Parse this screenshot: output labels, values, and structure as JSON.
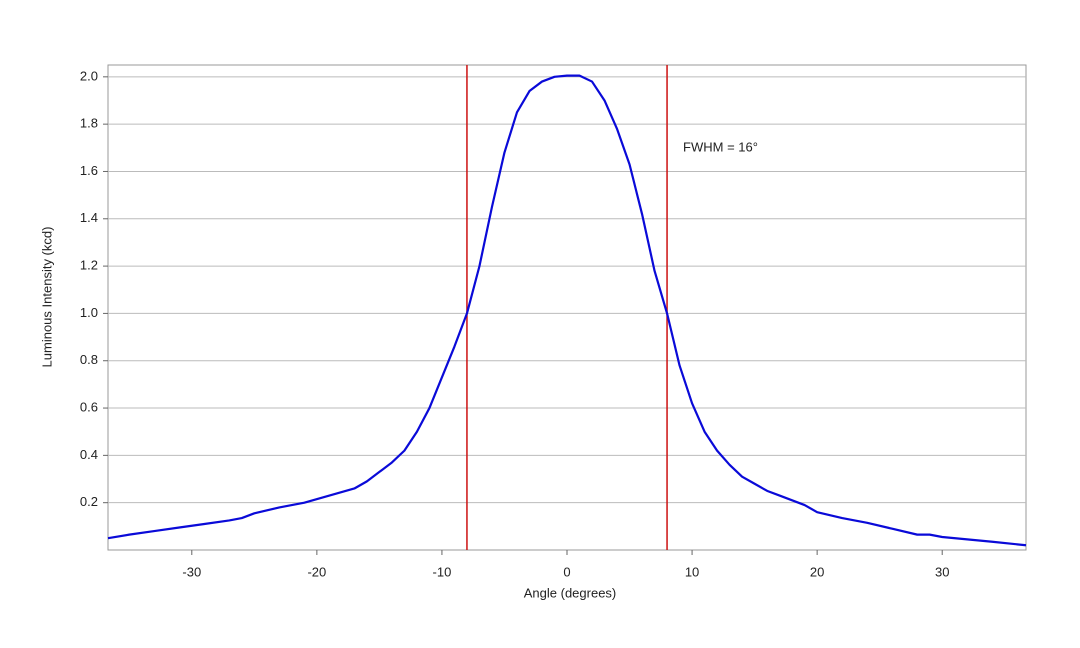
{
  "chart_data": {
    "type": "line",
    "xlabel": "Angle (degrees)",
    "ylabel": "Luminous Intensity (kcd)",
    "annotation": "FWHM = 16°",
    "x": [
      -36.7,
      -35,
      -33,
      -31,
      -29,
      -27,
      -26,
      -25,
      -23,
      -21,
      -19,
      -17,
      -16,
      -15,
      -14,
      -13,
      -12,
      -11,
      -10,
      -9,
      -8,
      -7,
      -6,
      -5,
      -4,
      -3,
      -2,
      -1,
      0,
      1,
      2,
      3,
      4,
      5,
      6,
      7,
      8,
      9,
      10,
      11,
      12,
      13,
      14,
      15,
      16,
      17,
      18,
      19,
      20,
      22,
      24,
      26,
      28,
      29,
      30,
      32,
      34,
      36.7
    ],
    "series": [
      {
        "name": "Luminous Intensity",
        "color": "#0a0ad8",
        "values": [
          0.05,
          0.065,
          0.08,
          0.095,
          0.11,
          0.125,
          0.135,
          0.155,
          0.18,
          0.2,
          0.23,
          0.26,
          0.29,
          0.33,
          0.37,
          0.42,
          0.5,
          0.6,
          0.73,
          0.86,
          1.0,
          1.2,
          1.45,
          1.68,
          1.85,
          1.94,
          1.98,
          2.0,
          2.005,
          2.005,
          1.98,
          1.9,
          1.78,
          1.63,
          1.42,
          1.18,
          1.0,
          0.78,
          0.62,
          0.5,
          0.42,
          0.36,
          0.31,
          0.28,
          0.25,
          0.23,
          0.21,
          0.19,
          0.16,
          0.135,
          0.115,
          0.09,
          0.065,
          0.065,
          0.055,
          0.045,
          0.035,
          0.02
        ]
      }
    ],
    "vlines": [
      -8,
      8
    ],
    "vline_color": "#cc1111",
    "xlim": [
      -36.7,
      36.7
    ],
    "xticks": [
      -30,
      -20,
      -10,
      0,
      10,
      20,
      30
    ],
    "ylim": [
      0,
      2.05
    ],
    "yticks": [
      0.2,
      0.4,
      0.6,
      0.8,
      {
        "value": 1.0,
        "label": "1.0"
      },
      1.2,
      1.4,
      1.6,
      1.8,
      {
        "value": 2.0,
        "label": "2.0"
      }
    ],
    "grid": true
  }
}
